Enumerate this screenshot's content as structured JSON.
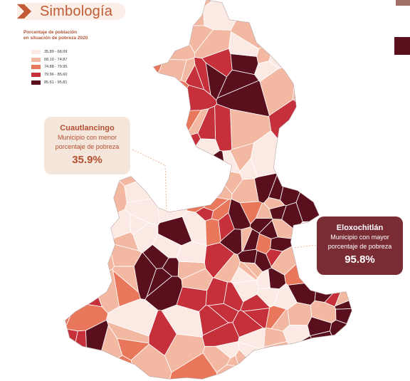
{
  "header": {
    "title": "Simbología",
    "chevron_icon": "chevron-right-icon"
  },
  "legend": {
    "title_line1": "Porcentaje de población",
    "title_line2": "en situación de pobreza 2020",
    "items": [
      {
        "label": "35.89 - 68.09",
        "color": "#fbeae4"
      },
      {
        "label": "68.10 - 74.87",
        "color": "#f3b8a2"
      },
      {
        "label": "74.88 - 79.95",
        "color": "#e9775b"
      },
      {
        "label": "79.96 - 85.60",
        "color": "#c5303b"
      },
      {
        "label": "85.61 - 95.81",
        "color": "#5a0f1c"
      }
    ]
  },
  "callouts": {
    "min": {
      "name": "Cuautlancingo",
      "line1": "Municipio con menor",
      "line2": "porcentaje de pobreza",
      "value": "35.9%"
    },
    "max": {
      "name": "Eloxochitlán",
      "line1": "Municipio con mayor",
      "line2": "porcentaje de pobreza",
      "value": "95.8%"
    }
  },
  "colors": {
    "accent": "#bf5a34",
    "callout_dark": "#7a2c35",
    "callout_light": "#f5e6dc",
    "map_border": "#ffffff"
  }
}
